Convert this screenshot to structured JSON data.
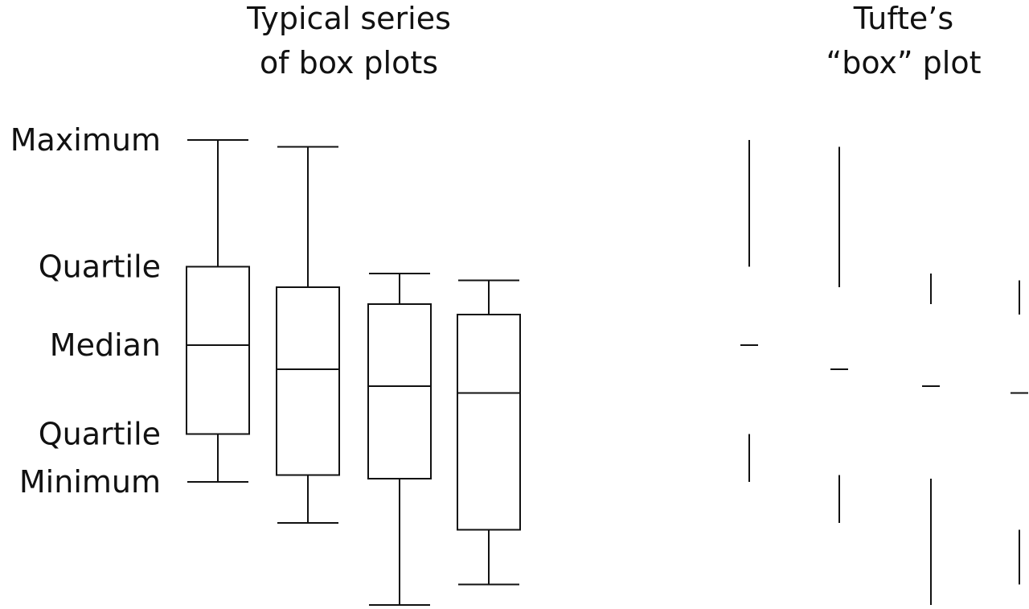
{
  "chart_data": {
    "type": "box",
    "panels": [
      {
        "title_lines": [
          "Typical series",
          "of box plots"
        ],
        "style": "box"
      },
      {
        "title_lines": [
          "Tufte’s",
          "“box” plot"
        ],
        "style": "tufte"
      }
    ],
    "y_labels": [
      {
        "text": "Maximum",
        "value": 10
      },
      {
        "text": "Quartile",
        "value": 6.3
      },
      {
        "text": "Median",
        "value": 4
      },
      {
        "text": "Quartile",
        "value": 1.4
      },
      {
        "text": "Minimum",
        "value": 0
      }
    ],
    "series": [
      {
        "max": 10,
        "q3": 6.3,
        "median": 4,
        "q1": 1.4,
        "min": 0
      },
      {
        "max": 9.8,
        "q3": 5.7,
        "median": 3.3,
        "q1": 0.2,
        "min": -1.2
      },
      {
        "max": 6.1,
        "q3": 5.2,
        "median": 2.8,
        "q1": 0.1,
        "min": -3.6
      },
      {
        "max": 5.9,
        "q3": 4.9,
        "median": 2.6,
        "q1": -1.4,
        "min": -3
      }
    ],
    "colors": {
      "line": "#111111",
      "background": "#ffffff"
    }
  }
}
